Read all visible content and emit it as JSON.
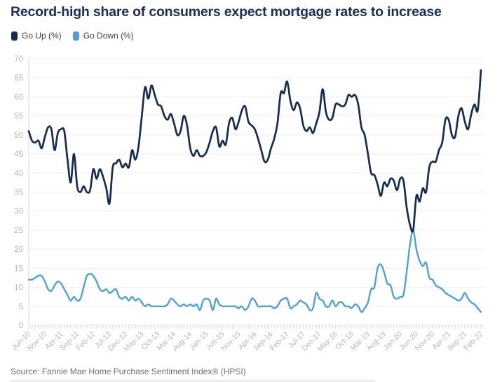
{
  "title": "Record-high share of consumers expect mortgage rates to increase",
  "source": "Source: Fannie Mae Home Purchase Sentiment Index® (HPSI)",
  "legend": [
    {
      "label": "Go Up (%)",
      "color": "#132c50"
    },
    {
      "label": "Go Down (%)",
      "color": "#4da1d9"
    }
  ],
  "colors": {
    "title": "#1a2e57",
    "grid": "#ededed",
    "axis": "#d8d8d8",
    "tick": "#d8d8d8",
    "tick_label": "#b6b6b6",
    "source_text": "#6f6f6f"
  },
  "chart_data": {
    "type": "line",
    "title": "Record-high share of consumers expect mortgage rates to increase",
    "xlabel": "",
    "ylabel": "",
    "ylim": [
      0,
      70
    ],
    "y_tick_step": 5,
    "grid": true,
    "legend_position": "top-left",
    "x_tick_interval": 5,
    "x_tick_labels": [
      "Jun-10",
      "Nov-10",
      "Apr-11",
      "Sep-11",
      "Feb-12",
      "Jul-12",
      "Dec-12",
      "May-13",
      "Oct-13",
      "Mar-14",
      "Aug-14",
      "Jan-15",
      "Jun-15",
      "Nov-15",
      "Apr-16",
      "Sep-16",
      "Feb-17",
      "Jul-17",
      "Dec-17",
      "May-18",
      "Oct-18",
      "Mar-19",
      "Aug-19",
      "Jan-20",
      "Jun-20",
      "Nov-20",
      "Apr-21",
      "Sep-21",
      "Feb-22"
    ],
    "series": [
      {
        "name": "Go Up (%)",
        "color": "#132c50",
        "values": [
          51,
          48.5,
          48,
          48.5,
          46.5,
          49.5,
          52,
          51.5,
          46,
          50.5,
          51.5,
          51,
          43.5,
          37.5,
          45,
          36.5,
          35,
          36.5,
          35,
          35.5,
          41,
          38.5,
          41,
          39,
          36,
          32,
          41.5,
          42.5,
          43.5,
          41.5,
          42.5,
          41.5,
          46,
          43.5,
          47,
          55,
          62.5,
          59.5,
          63,
          60.5,
          58,
          57.5,
          55,
          54,
          55.5,
          53,
          50,
          51,
          55,
          52.5,
          46.5,
          44.5,
          46,
          44.5,
          44.5,
          45.5,
          48,
          51,
          52,
          47,
          48.5,
          47.5,
          53,
          54.5,
          51.5,
          53.5,
          56.5,
          57.5,
          53.5,
          52.5,
          51.5,
          49,
          46,
          43,
          43.5,
          46.5,
          49,
          53,
          61,
          61,
          64,
          59,
          56.5,
          58.5,
          57,
          52.5,
          51,
          52,
          50.5,
          53,
          56,
          62,
          56,
          54,
          54.5,
          58,
          58,
          57.5,
          58,
          60.5,
          60,
          60.5,
          58,
          52,
          50,
          45,
          40,
          39.5,
          37,
          34,
          37.5,
          36.5,
          38.5,
          38,
          35.5,
          38.5,
          38,
          31,
          26.5,
          25,
          34,
          32.5,
          36,
          35,
          41.5,
          43,
          43,
          46,
          48,
          54,
          54,
          50,
          49.5,
          55,
          57,
          53.5,
          51.5,
          55.5,
          58,
          56.5,
          67
        ]
      },
      {
        "name": "Go Down (%)",
        "color": "#4da1d9",
        "values": [
          12,
          12,
          12.5,
          13,
          13,
          11.5,
          9.5,
          9,
          10.5,
          11.5,
          11,
          9.5,
          8,
          6.5,
          7.5,
          6.5,
          7,
          10,
          13,
          13.5,
          13,
          11.5,
          9.5,
          9,
          9.5,
          8.5,
          9,
          9.5,
          7.5,
          7,
          7.5,
          6.5,
          7.5,
          6.5,
          7,
          6,
          5,
          5.5,
          5,
          5,
          5,
          5,
          5,
          5.5,
          7,
          6.5,
          5.5,
          5,
          5.5,
          5,
          5.5,
          5,
          5.5,
          4,
          6.5,
          7,
          6.5,
          4,
          7,
          5.5,
          5,
          5,
          5,
          5,
          5,
          4.5,
          5,
          4,
          5,
          7,
          6.5,
          5,
          5,
          5,
          5,
          5,
          4.5,
          5,
          6.5,
          7,
          7,
          4.5,
          5,
          5.5,
          6.5,
          6,
          5.5,
          4,
          4.5,
          8.5,
          7,
          6.5,
          5,
          5,
          6.5,
          5,
          6,
          6,
          5,
          5,
          4.5,
          5.5,
          5,
          3.5,
          4.5,
          6,
          9.5,
          10,
          15,
          16,
          14,
          11,
          10.5,
          7.5,
          7,
          7.5,
          8,
          14,
          21,
          25,
          20,
          17,
          15.5,
          16.5,
          12.5,
          12,
          10.5,
          10,
          9.5,
          8.5,
          8,
          7.5,
          7,
          6.5,
          7,
          8.5,
          7,
          6,
          5.5,
          4.5,
          3.5
        ]
      }
    ]
  }
}
